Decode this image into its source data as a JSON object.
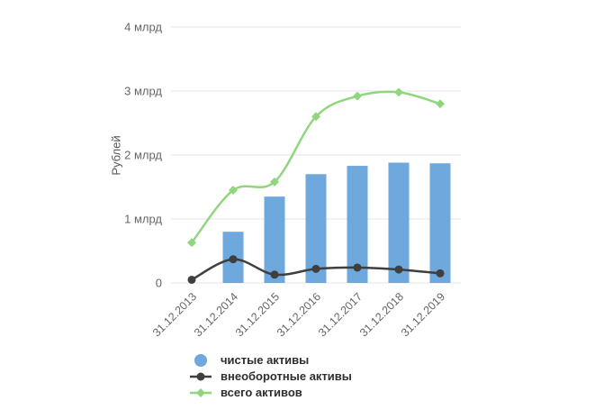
{
  "page": {
    "background": "#ffffff"
  },
  "colors": {
    "grid": "#e4e4e4",
    "axis_text": "#666666",
    "legend_text": "#2e2e2e"
  },
  "chart_data": {
    "type": "combo-bar-line",
    "title": "",
    "unit": "млрд руб",
    "ylabel": "Рублей",
    "xlabel": "",
    "ylim": [
      0,
      4
    ],
    "grid": "horizontal",
    "legend_position": "bottom-left",
    "y_ticks": [
      {
        "value": 4,
        "label": "4 млрд"
      },
      {
        "value": 3,
        "label": "3 млрд"
      },
      {
        "value": 2,
        "label": "2 млрд"
      },
      {
        "value": 1,
        "label": "1 млрд"
      },
      {
        "value": 0,
        "label": "0"
      }
    ],
    "categories": [
      "31.12.2013",
      "31.12.2014",
      "31.12.2015",
      "31.12.2016",
      "31.12.2017",
      "31.12.2018",
      "31.12.2019"
    ],
    "series": [
      {
        "name": "чистые активы",
        "type": "bar",
        "marker": "circle-filled",
        "color": "#6fa8dc",
        "values": [
          0,
          0.8,
          1.35,
          1.7,
          1.83,
          1.88,
          1.87
        ]
      },
      {
        "name": "внеоборотные активы",
        "type": "line",
        "marker": "circle",
        "color": "#3f3f3f",
        "values": [
          0.05,
          0.37,
          0.13,
          0.22,
          0.24,
          0.21,
          0.15
        ]
      },
      {
        "name": "всего активов",
        "type": "line",
        "marker": "diamond",
        "color": "#8fd67f",
        "values": [
          0.63,
          1.45,
          1.58,
          2.6,
          2.92,
          2.98,
          2.8
        ]
      }
    ]
  }
}
